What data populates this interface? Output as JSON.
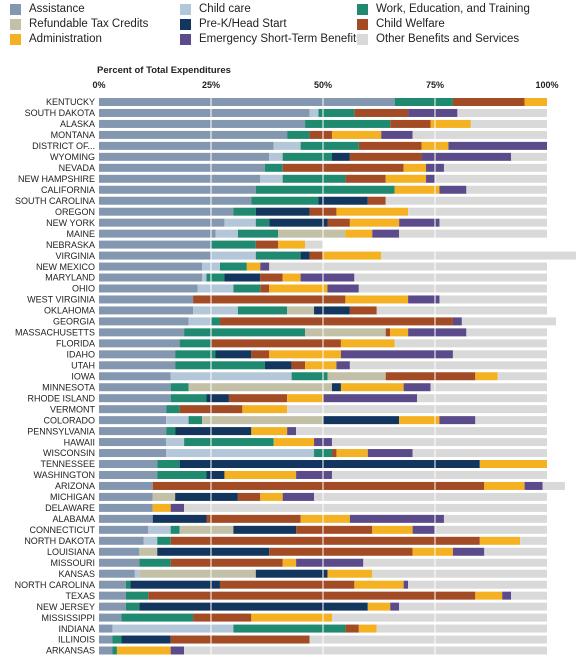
{
  "chart_data": {
    "type": "bar",
    "orientation": "horizontal",
    "stacked": true,
    "normalized": true,
    "xlabel": "Percent of Total Expenditures",
    "xlim": [
      0,
      100
    ],
    "xticks": [
      "0%",
      "25%",
      "50%",
      "75%",
      "100%"
    ],
    "grid": true,
    "legend_position": "top",
    "categories": [
      "KENTUCKY",
      "SOUTH DAKOTA",
      "ALASKA",
      "MONTANA",
      "DISTRICT OF...",
      "WYOMING",
      "NEVADA",
      "NEW HAMPSHIRE",
      "CALIFORNIA",
      "SOUTH CAROLINA",
      "OREGON",
      "NEW YORK",
      "MAINE",
      "NEBRASKA",
      "VIRGINIA",
      "NEW MEXICO",
      "MARYLAND",
      "OHIO",
      "WEST VIRGINIA",
      "OKLAHOMA",
      "GEORGIA",
      "MASSACHUSETTS",
      "FLORIDA",
      "IDAHO",
      "UTAH",
      "IOWA",
      "MINNESOTA",
      "RHODE ISLAND",
      "VERMONT",
      "COLORADO",
      "PENNSYLVANIA",
      "HAWAII",
      "WISCONSIN",
      "TENNESSEE",
      "WASHINGTON",
      "ARIZONA",
      "MICHIGAN",
      "DELAWARE",
      "ALABAMA",
      "CONNECTICUT",
      "NORTH DAKOTA",
      "LOUISIANA",
      "MISSOURI",
      "KANSAS",
      "NORTH CAROLINA",
      "TEXAS",
      "NEW JERSEY",
      "MISSISSIPPI",
      "INDIANA",
      "ILLINOIS",
      "ARKANSAS"
    ],
    "series": [
      {
        "name": "Assistance",
        "color": "#8497b0",
        "values": [
          66,
          47,
          46,
          42,
          39,
          38,
          37,
          36,
          35,
          34,
          30,
          28,
          26,
          25,
          25,
          23,
          23,
          22,
          21,
          21,
          20,
          19,
          18,
          17,
          17,
          16,
          16,
          16,
          15,
          15,
          15,
          15,
          15,
          13,
          13,
          12,
          12,
          12,
          12,
          11,
          10,
          9,
          9,
          8,
          6,
          6,
          6,
          5,
          3,
          3,
          3
        ]
      },
      {
        "name": "Child care",
        "color": "#b4c7d9",
        "values": [
          0,
          2,
          0,
          0,
          6,
          3,
          0,
          5,
          0,
          0,
          0,
          7,
          5,
          0,
          10,
          4,
          1,
          8,
          0,
          10,
          5,
          0,
          0,
          0,
          0,
          27,
          0,
          0,
          0,
          5,
          0,
          4,
          33,
          0,
          0,
          0,
          0,
          0,
          0,
          5,
          3,
          0,
          0,
          1,
          0,
          0,
          0,
          0,
          27,
          0,
          0
        ]
      },
      {
        "name": "Work, Education, and Training",
        "color": "#1f8a70",
        "values": [
          13,
          8,
          19,
          5,
          13,
          11,
          4,
          14,
          31,
          15,
          5,
          3,
          9,
          10,
          10,
          6,
          4,
          6,
          0,
          11,
          2,
          27,
          7,
          9,
          20,
          8,
          4,
          8,
          3,
          3,
          2,
          20,
          4,
          5,
          11,
          0,
          0,
          0,
          0,
          2,
          3,
          0,
          7,
          0,
          1,
          5,
          3,
          16,
          25,
          2,
          1
        ]
      },
      {
        "name": "Refundable Tax Credits",
        "color": "#c2c0a6",
        "values": [
          0,
          0,
          0,
          0,
          0,
          0,
          0,
          0,
          0,
          0,
          0,
          0,
          15,
          0,
          0,
          0,
          0,
          0,
          0,
          6,
          0,
          18,
          0,
          0,
          0,
          13,
          32,
          0,
          0,
          27,
          0,
          0,
          0,
          0,
          0,
          0,
          5,
          0,
          0,
          12,
          0,
          4,
          0,
          26,
          0,
          0,
          0,
          0,
          0,
          0,
          0
        ]
      },
      {
        "name": "Pre-K/Head Start",
        "color": "#13365e",
        "values": [
          0,
          0,
          0,
          0,
          0,
          4,
          0,
          0,
          0,
          11,
          12,
          13,
          0,
          0,
          2,
          0,
          8,
          0,
          0,
          8,
          0,
          0,
          0,
          8,
          6,
          0,
          2,
          5,
          0,
          17,
          17,
          0,
          0,
          67,
          4,
          0,
          14,
          0,
          12,
          14,
          0,
          25,
          0,
          16,
          20,
          0,
          51,
          0,
          0,
          11,
          0
        ]
      },
      {
        "name": "Child Welfare",
        "color": "#a24b24",
        "values": [
          16,
          12,
          9,
          5,
          14,
          16,
          27,
          9,
          0,
          4,
          6,
          5,
          0,
          5,
          3,
          0,
          5,
          2,
          34,
          6,
          52,
          1,
          29,
          4,
          3,
          20,
          0,
          13,
          14,
          0,
          0,
          0,
          1,
          0,
          0,
          74,
          5,
          0,
          21,
          17,
          69,
          32,
          25,
          0,
          30,
          73,
          0,
          13,
          3,
          31,
          0
        ]
      },
      {
        "name": "Administration",
        "color": "#f4b223",
        "values": [
          5,
          0,
          9,
          11,
          6,
          0,
          5,
          9,
          10,
          0,
          16,
          11,
          6,
          6,
          13,
          3,
          4,
          13,
          14,
          0,
          0,
          4,
          12,
          16,
          7,
          5,
          14,
          8,
          10,
          9,
          8,
          9,
          7,
          15,
          16,
          9,
          5,
          4,
          11,
          9,
          9,
          9,
          3,
          10,
          11,
          6,
          5,
          18,
          4,
          0,
          12
        ]
      },
      {
        "name": "Emergency Short-Term Benefits",
        "color": "#5c4b8a",
        "values": [
          0,
          11,
          0,
          7,
          22,
          20,
          4,
          2,
          6,
          0,
          0,
          9,
          6,
          0,
          0,
          2,
          12,
          7,
          7,
          0,
          2,
          13,
          0,
          25,
          3,
          0,
          6,
          21,
          0,
          8,
          2,
          4,
          10,
          0,
          8,
          4,
          7,
          3,
          21,
          5,
          0,
          7,
          15,
          0,
          1,
          2,
          2,
          0,
          0,
          0,
          3
        ]
      },
      {
        "name": "Other Benefits and Services",
        "color": "#d9d9d9",
        "values": [
          0,
          20,
          17,
          30,
          0,
          8,
          23,
          25,
          18,
          36,
          31,
          24,
          33,
          4,
          47,
          62,
          43,
          42,
          24,
          38,
          21,
          18,
          34,
          21,
          44,
          11,
          26,
          29,
          58,
          16,
          56,
          48,
          30,
          0,
          48,
          5,
          52,
          81,
          23,
          25,
          6,
          14,
          41,
          39,
          31,
          8,
          33,
          48,
          38,
          53,
          81
        ]
      }
    ]
  }
}
